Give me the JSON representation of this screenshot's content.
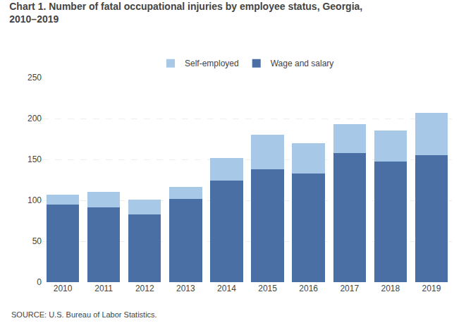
{
  "chart_data": {
    "type": "bar",
    "stacked": true,
    "title": "Chart 1. Number of fatal occupational injuries by employee status, Georgia,\n2010–2019",
    "categories": [
      "2010",
      "2011",
      "2012",
      "2013",
      "2014",
      "2015",
      "2016",
      "2017",
      "2018",
      "2019"
    ],
    "series": [
      {
        "name": "Wage and salary",
        "color": "#4a6fa5",
        "values": [
          95,
          91,
          83,
          102,
          124,
          138,
          133,
          158,
          147,
          155
        ]
      },
      {
        "name": "Self-employed",
        "color": "#a8c8e8",
        "values": [
          12,
          19,
          18,
          14,
          28,
          42,
          37,
          35,
          38,
          52
        ]
      }
    ],
    "ylim": [
      0,
      250
    ],
    "yticks": [
      0,
      50,
      100,
      150,
      200,
      250
    ],
    "grid": true,
    "legend": "top",
    "annotations": [
      "SOURCE: U.S. Bureau of Labor Statistics."
    ]
  }
}
